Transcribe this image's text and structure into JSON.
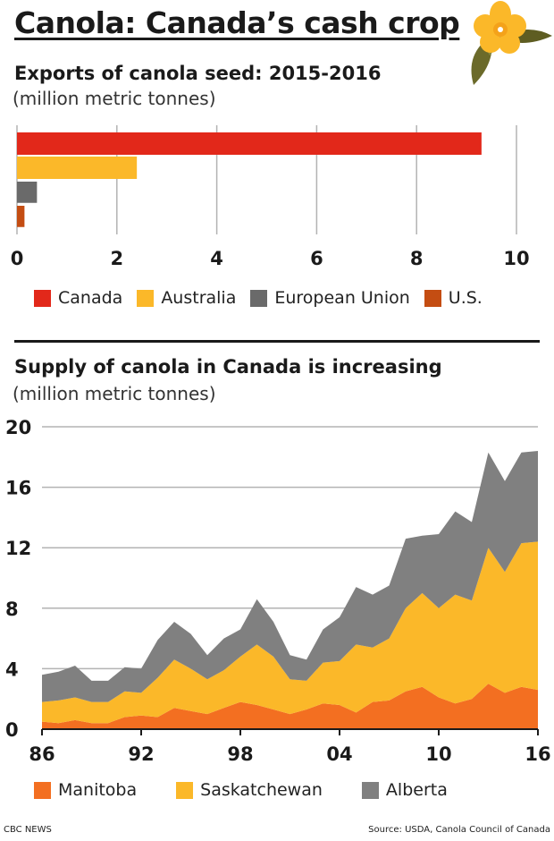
{
  "header": {
    "title": "Canola: Canada’s cash crop",
    "logo_icon": "canola-flower-icon"
  },
  "colors": {
    "canada": "#e2281a",
    "australia": "#fbb829",
    "eu": "#6a6a6a",
    "us": "#c44d12",
    "manitoba": "#f36f21",
    "saskatchewan": "#fbb829",
    "alberta": "#808080",
    "grid": "#b3b3b3"
  },
  "chart_data": [
    {
      "type": "bar",
      "orientation": "horizontal",
      "title": "Exports of canola seed: 2015-2016",
      "subtitle": "(million metric tonnes)",
      "categories": [
        "Canada",
        "Australia",
        "European Union",
        "U.S."
      ],
      "values": [
        9.3,
        2.4,
        0.4,
        0.15
      ],
      "xlim": [
        0,
        10
      ],
      "xticks": [
        0,
        2,
        4,
        6,
        8,
        10
      ],
      "grid": true,
      "legend": "bottom"
    },
    {
      "type": "area",
      "stacked": true,
      "title": "Supply of canola in Canada is increasing",
      "subtitle": "(million metric tonnes)",
      "x": [
        1986,
        1987,
        1988,
        1989,
        1990,
        1991,
        1992,
        1993,
        1994,
        1995,
        1996,
        1997,
        1998,
        1999,
        2000,
        2001,
        2002,
        2003,
        2004,
        2005,
        2006,
        2007,
        2008,
        2009,
        2010,
        2011,
        2012,
        2013,
        2014,
        2015,
        2016
      ],
      "series": [
        {
          "name": "Manitoba",
          "values": [
            0.5,
            0.4,
            0.6,
            0.4,
            0.4,
            0.8,
            0.9,
            0.8,
            1.4,
            1.2,
            1.0,
            1.4,
            1.8,
            1.6,
            1.3,
            1.0,
            1.3,
            1.7,
            1.6,
            1.1,
            1.8,
            1.9,
            2.5,
            2.8,
            2.1,
            1.7,
            2.0,
            3.0,
            2.4,
            2.8,
            2.6
          ]
        },
        {
          "name": "Saskatchewan",
          "values": [
            1.3,
            1.5,
            1.5,
            1.4,
            1.4,
            1.7,
            1.5,
            2.6,
            3.2,
            2.8,
            2.3,
            2.5,
            3.0,
            4.0,
            3.5,
            2.3,
            1.9,
            2.7,
            2.9,
            4.5,
            3.6,
            4.1,
            5.5,
            6.2,
            5.9,
            7.2,
            6.5,
            9.0,
            8.0,
            9.5,
            9.8
          ]
        },
        {
          "name": "Alberta",
          "values": [
            1.8,
            1.9,
            2.1,
            1.4,
            1.4,
            1.6,
            1.6,
            2.5,
            2.5,
            2.3,
            1.6,
            2.1,
            1.8,
            3.0,
            2.3,
            1.6,
            1.4,
            2.2,
            2.9,
            3.8,
            3.5,
            3.5,
            4.6,
            3.8,
            4.9,
            5.5,
            5.2,
            6.3,
            6.0,
            6.0,
            6.0
          ]
        }
      ],
      "ylim": [
        0,
        20
      ],
      "yticks": [
        0,
        4,
        8,
        12,
        16,
        20
      ],
      "xtick_labels": [
        "86",
        "92",
        "98",
        "04",
        "10",
        "16"
      ],
      "grid": true,
      "legend": "bottom"
    }
  ],
  "footer": {
    "credit": "CBC NEWS",
    "source": "Source: USDA, Canola Council of Canada"
  }
}
